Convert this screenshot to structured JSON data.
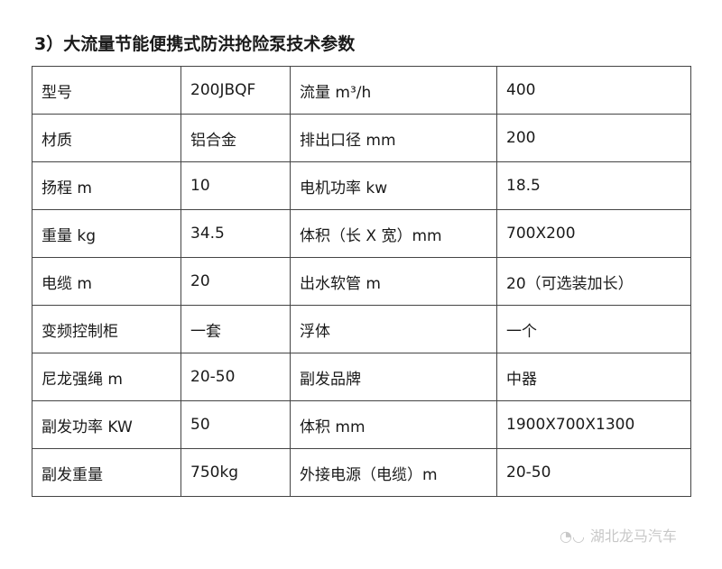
{
  "title": "3）大流量节能便携式防洪抢险泵技术参数",
  "rows": [
    [
      "型号",
      "200JBQF",
      "流量 m³/h",
      "400"
    ],
    [
      "材质",
      "铝合金",
      "排出口径 mm",
      "200"
    ],
    [
      "扬程 m",
      "10",
      "电机功率 kw",
      "18.5"
    ],
    [
      "重量 kg",
      "34.5",
      "体积（长 X 宽）mm",
      "700X200"
    ],
    [
      "电缆 m",
      "20",
      "出水软管 m",
      "20（可选装加长）"
    ],
    [
      "变频控制柜",
      "一套",
      "浮体",
      "一个"
    ],
    [
      "尼龙强绳 m",
      "20-50",
      "副发品牌",
      "中器"
    ],
    [
      "副发功率 KW",
      "50",
      "体积 mm",
      "1900X700X1300"
    ],
    [
      "副发重量",
      "750kg",
      "外接电源（电缆）m",
      "20-50"
    ]
  ],
  "watermark": {
    "icon": "wechat-icon",
    "text": "湖北龙马汽车"
  }
}
